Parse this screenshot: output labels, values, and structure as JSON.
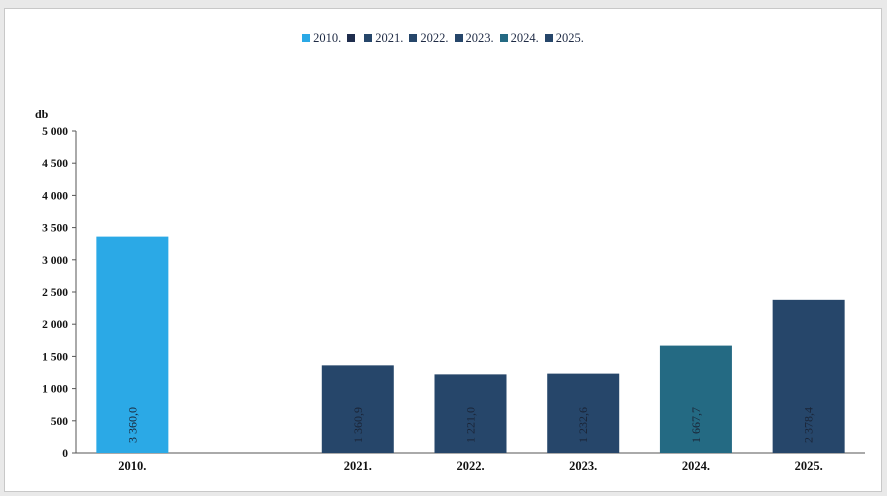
{
  "chart_data": {
    "type": "bar",
    "ylabel": "db",
    "ylim": [
      0,
      5000
    ],
    "yticks": [
      0,
      500,
      1000,
      1500,
      2000,
      2500,
      3000,
      3500,
      4000,
      4500,
      5000
    ],
    "ytick_labels": [
      "0",
      "500",
      "1 000",
      "1 500",
      "2 000",
      "2 500",
      "3 000",
      "3 500",
      "4 000",
      "4 500",
      "5 000"
    ],
    "categories": [
      "2010.",
      "",
      "2021.",
      "2022.",
      "2023.",
      "2024.",
      "2025."
    ],
    "values": [
      3360.0,
      null,
      1360.9,
      1221.0,
      1232.6,
      1667.7,
      2378.4
    ],
    "data_labels": [
      "3 360,0",
      "",
      "1 360,9",
      "1 221,0",
      "1 232,6",
      "1 667,7",
      "2 378,4"
    ],
    "colors": [
      "#2ba9e6",
      "#1f2d4d",
      "#26466a",
      "#26466a",
      "#26466a",
      "#246a83",
      "#26466a"
    ],
    "legend": {
      "placement": "top-center",
      "entries": [
        {
          "label": "2010.",
          "color": "#2ba9e6"
        },
        {
          "label": "",
          "color": "#1f2d4d"
        },
        {
          "label": "2021.",
          "color": "#26466a"
        },
        {
          "label": "2022.",
          "color": "#26466a"
        },
        {
          "label": "2023.",
          "color": "#26466a"
        },
        {
          "label": "2024.",
          "color": "#246a83"
        },
        {
          "label": "2025.",
          "color": "#26466a"
        }
      ]
    },
    "grid": false
  }
}
